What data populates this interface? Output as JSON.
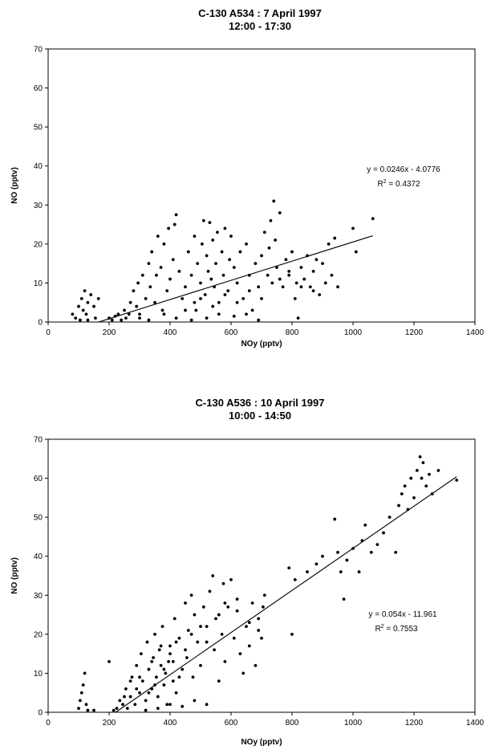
{
  "chart_data": [
    {
      "type": "scatter",
      "title": "C-130 A534 : 7 April 1997",
      "subtitle": "12:00 - 17:30",
      "xlabel": "NOy (pptv)",
      "ylabel": "NO (pptv)",
      "xlim": [
        0,
        1400
      ],
      "ylim": [
        0,
        70
      ],
      "xticks": [
        0,
        200,
        400,
        600,
        800,
        1000,
        1200,
        1400
      ],
      "yticks": [
        0,
        10,
        20,
        30,
        40,
        50,
        60,
        70
      ],
      "grid": false,
      "legend": "none",
      "trendline": {
        "slope": 0.0246,
        "intercept": -4.0776,
        "x_range": [
          165,
          1065
        ]
      },
      "equation": "y = 0.0246x - 4.0776",
      "r2_prefix": "R",
      "r2_sup": "2",
      "r2_value": " = 0.4372",
      "points": [
        [
          80,
          2
        ],
        [
          90,
          1
        ],
        [
          100,
          4
        ],
        [
          110,
          6
        ],
        [
          115,
          3
        ],
        [
          120,
          8
        ],
        [
          125,
          2
        ],
        [
          130,
          5
        ],
        [
          140,
          7
        ],
        [
          150,
          4
        ],
        [
          155,
          1
        ],
        [
          165,
          6
        ],
        [
          130,
          0.5
        ],
        [
          105,
          0.5
        ],
        [
          200,
          1
        ],
        [
          210,
          0.5
        ],
        [
          220,
          1.5
        ],
        [
          230,
          2
        ],
        [
          240,
          0.5
        ],
        [
          250,
          3
        ],
        [
          255,
          1
        ],
        [
          265,
          2
        ],
        [
          270,
          5
        ],
        [
          280,
          8
        ],
        [
          290,
          4
        ],
        [
          295,
          10
        ],
        [
          300,
          2
        ],
        [
          310,
          12
        ],
        [
          320,
          6
        ],
        [
          330,
          15
        ],
        [
          335,
          9
        ],
        [
          340,
          18
        ],
        [
          350,
          5
        ],
        [
          355,
          12
        ],
        [
          360,
          22
        ],
        [
          370,
          14
        ],
        [
          375,
          3
        ],
        [
          380,
          20
        ],
        [
          390,
          8
        ],
        [
          395,
          24
        ],
        [
          400,
          11
        ],
        [
          410,
          16
        ],
        [
          415,
          25
        ],
        [
          420,
          27.5
        ],
        [
          430,
          13
        ],
        [
          440,
          6
        ],
        [
          450,
          9
        ],
        [
          460,
          18
        ],
        [
          470,
          12
        ],
        [
          480,
          22
        ],
        [
          485,
          3
        ],
        [
          490,
          15
        ],
        [
          500,
          10
        ],
        [
          505,
          20
        ],
        [
          510,
          26
        ],
        [
          515,
          7
        ],
        [
          520,
          17
        ],
        [
          525,
          13
        ],
        [
          530,
          25.5
        ],
        [
          535,
          11
        ],
        [
          540,
          21
        ],
        [
          545,
          9
        ],
        [
          550,
          15
        ],
        [
          555,
          23
        ],
        [
          560,
          5
        ],
        [
          570,
          18
        ],
        [
          575,
          12
        ],
        [
          580,
          24
        ],
        [
          590,
          8
        ],
        [
          595,
          16
        ],
        [
          600,
          22
        ],
        [
          610,
          14
        ],
        [
          620,
          10
        ],
        [
          630,
          18
        ],
        [
          640,
          6
        ],
        [
          650,
          20
        ],
        [
          660,
          12
        ],
        [
          670,
          3
        ],
        [
          680,
          15
        ],
        [
          690,
          9
        ],
        [
          700,
          17
        ],
        [
          710,
          23
        ],
        [
          720,
          12
        ],
        [
          725,
          19
        ],
        [
          730,
          26
        ],
        [
          740,
          31
        ],
        [
          745,
          21
        ],
        [
          750,
          14
        ],
        [
          760,
          28
        ],
        [
          770,
          9
        ],
        [
          780,
          16
        ],
        [
          790,
          12
        ],
        [
          800,
          18
        ],
        [
          810,
          6
        ],
        [
          815,
          10
        ],
        [
          820,
          1
        ],
        [
          830,
          14
        ],
        [
          840,
          11
        ],
        [
          850,
          17
        ],
        [
          860,
          9
        ],
        [
          870,
          13
        ],
        [
          880,
          16
        ],
        [
          890,
          7
        ],
        [
          900,
          15
        ],
        [
          910,
          10
        ],
        [
          920,
          20
        ],
        [
          930,
          12
        ],
        [
          940,
          21.5
        ],
        [
          950,
          9
        ],
        [
          1000,
          24
        ],
        [
          1010,
          18
        ],
        [
          1065,
          26.5
        ],
        [
          470,
          0.5
        ],
        [
          520,
          1
        ],
        [
          560,
          2
        ],
        [
          610,
          1.5
        ],
        [
          650,
          2
        ],
        [
          690,
          0.5
        ],
        [
          300,
          1
        ],
        [
          330,
          0.5
        ],
        [
          380,
          2
        ],
        [
          420,
          1
        ],
        [
          450,
          3
        ],
        [
          480,
          5
        ],
        [
          500,
          6
        ],
        [
          540,
          4
        ],
        [
          580,
          7
        ],
        [
          620,
          5
        ],
        [
          660,
          8
        ],
        [
          700,
          6
        ],
        [
          735,
          10
        ],
        [
          760,
          11
        ],
        [
          790,
          13
        ],
        [
          830,
          9
        ],
        [
          870,
          8
        ]
      ],
      "point_count_note": ""
    },
    {
      "type": "scatter",
      "title": "C-130 A536 : 10 April 1997",
      "subtitle": "10:00 - 14:50",
      "xlabel": "NOy (pptv)",
      "ylabel": "NO (pptv)",
      "xlim": [
        0,
        1400
      ],
      "ylim": [
        0,
        70
      ],
      "xticks": [
        0,
        200,
        400,
        600,
        800,
        1000,
        1200,
        1400
      ],
      "yticks": [
        0,
        10,
        20,
        30,
        40,
        50,
        60,
        70
      ],
      "grid": false,
      "legend": "none",
      "trendline": {
        "slope": 0.054,
        "intercept": -11.961,
        "x_range": [
          222,
          1340
        ]
      },
      "equation": "y = 0.054x - 11.961",
      "r2_prefix": "R",
      "r2_sup": "2",
      "r2_value": " = 0.7553",
      "points": [
        [
          100,
          1
        ],
        [
          105,
          3
        ],
        [
          110,
          5
        ],
        [
          115,
          7
        ],
        [
          120,
          10
        ],
        [
          125,
          2
        ],
        [
          130,
          0.5
        ],
        [
          150,
          0.5
        ],
        [
          200,
          13
        ],
        [
          215,
          0.5
        ],
        [
          225,
          1
        ],
        [
          235,
          3
        ],
        [
          245,
          2
        ],
        [
          255,
          6
        ],
        [
          260,
          1
        ],
        [
          270,
          4
        ],
        [
          275,
          9
        ],
        [
          285,
          2
        ],
        [
          290,
          12
        ],
        [
          300,
          5
        ],
        [
          305,
          15
        ],
        [
          310,
          8
        ],
        [
          320,
          3
        ],
        [
          325,
          18
        ],
        [
          330,
          11
        ],
        [
          340,
          6
        ],
        [
          345,
          14
        ],
        [
          350,
          20
        ],
        [
          355,
          9
        ],
        [
          360,
          4
        ],
        [
          365,
          16
        ],
        [
          370,
          12
        ],
        [
          375,
          22
        ],
        [
          380,
          7
        ],
        [
          385,
          10
        ],
        [
          390,
          2
        ],
        [
          395,
          13
        ],
        [
          400,
          17
        ],
        [
          410,
          8
        ],
        [
          415,
          24
        ],
        [
          420,
          5
        ],
        [
          430,
          19
        ],
        [
          440,
          11
        ],
        [
          450,
          28
        ],
        [
          455,
          14
        ],
        [
          460,
          21
        ],
        [
          470,
          30
        ],
        [
          475,
          9
        ],
        [
          480,
          25
        ],
        [
          490,
          18
        ],
        [
          500,
          12
        ],
        [
          510,
          27
        ],
        [
          520,
          22
        ],
        [
          530,
          31
        ],
        [
          540,
          35
        ],
        [
          545,
          16
        ],
        [
          550,
          24
        ],
        [
          560,
          8
        ],
        [
          570,
          20
        ],
        [
          575,
          33
        ],
        [
          580,
          13
        ],
        [
          590,
          27
        ],
        [
          600,
          34
        ],
        [
          610,
          19
        ],
        [
          620,
          26
        ],
        [
          630,
          15
        ],
        [
          640,
          10
        ],
        [
          650,
          22
        ],
        [
          660,
          17
        ],
        [
          670,
          28
        ],
        [
          680,
          12
        ],
        [
          690,
          24
        ],
        [
          700,
          19
        ],
        [
          705,
          27
        ],
        [
          710,
          30
        ],
        [
          790,
          37
        ],
        [
          800,
          20
        ],
        [
          810,
          34
        ],
        [
          850,
          36
        ],
        [
          880,
          38
        ],
        [
          900,
          40
        ],
        [
          940,
          49.5
        ],
        [
          950,
          41
        ],
        [
          960,
          36
        ],
        [
          970,
          29
        ],
        [
          980,
          39
        ],
        [
          1000,
          42
        ],
        [
          1020,
          36
        ],
        [
          1030,
          44
        ],
        [
          1040,
          48
        ],
        [
          1060,
          41
        ],
        [
          1080,
          43
        ],
        [
          1100,
          46
        ],
        [
          1120,
          50
        ],
        [
          1140,
          41
        ],
        [
          1150,
          53
        ],
        [
          1160,
          56
        ],
        [
          1170,
          58
        ],
        [
          1180,
          52
        ],
        [
          1190,
          60
        ],
        [
          1200,
          55
        ],
        [
          1210,
          62
        ],
        [
          1220,
          65.5
        ],
        [
          1225,
          60
        ],
        [
          1230,
          64
        ],
        [
          1240,
          58
        ],
        [
          1250,
          61
        ],
        [
          1260,
          56
        ],
        [
          1280,
          62
        ],
        [
          1340,
          59.5
        ],
        [
          320,
          0.5
        ],
        [
          360,
          1
        ],
        [
          400,
          2
        ],
        [
          440,
          1.5
        ],
        [
          480,
          3
        ],
        [
          520,
          2
        ],
        [
          350,
          7
        ],
        [
          380,
          11
        ],
        [
          410,
          13
        ],
        [
          430,
          9
        ],
        [
          300,
          9
        ],
        [
          330,
          5
        ],
        [
          270,
          8
        ],
        [
          250,
          4
        ],
        [
          290,
          6
        ],
        [
          340,
          13
        ],
        [
          370,
          17
        ],
        [
          400,
          15
        ],
        [
          420,
          18
        ],
        [
          450,
          16
        ],
        [
          470,
          20
        ],
        [
          500,
          22
        ],
        [
          520,
          18
        ],
        [
          560,
          25
        ],
        [
          580,
          28
        ],
        [
          620,
          29
        ],
        [
          660,
          23
        ],
        [
          690,
          21
        ]
      ],
      "point_count_note": ""
    }
  ]
}
